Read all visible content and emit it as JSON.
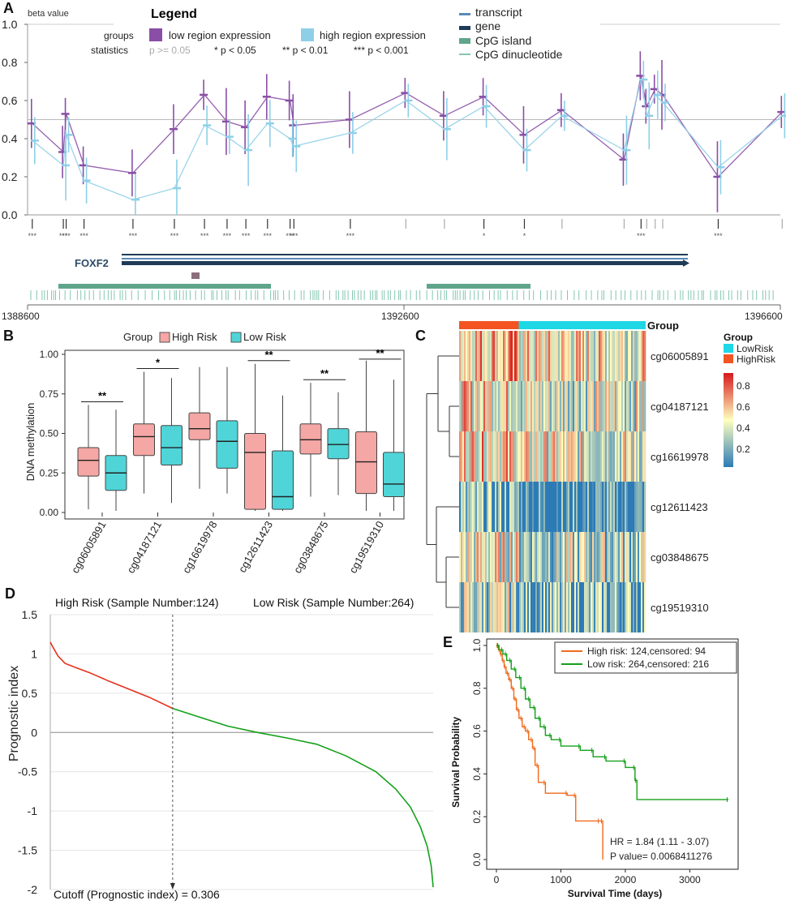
{
  "panels": {
    "A": "A",
    "B": "B",
    "C": "C",
    "D": "D",
    "E": "E"
  },
  "colors": {
    "low_region": "#8a4ea6",
    "high_region": "#8ecfe8",
    "transcript": "#5b8ab5",
    "gene": "#1f3b57",
    "cpg_island": "#5fa58a",
    "cpg_dinucleotide": "#84c6b2",
    "high_risk": "#f4a7a4",
    "low_risk": "#4fd5d8",
    "heat_low": "#2c7bb6",
    "heat_mid": "#ffffbf",
    "heat_high": "#d7191c",
    "group_high": "#f35422",
    "group_low": "#1ed8e6",
    "curve_high": "#e8301c",
    "curve_low": "#14a01a"
  },
  "chart_data": [
    {
      "id": "A",
      "type": "line",
      "title": "Legend",
      "ylabel": "beta value",
      "ylim": [
        0,
        1.0
      ],
      "yticks": [
        "0.0",
        "0.2",
        "0.4",
        "0.6",
        "0.8",
        "1.0"
      ],
      "legend": {
        "groups_label": "groups",
        "statistics_label": "statistics",
        "low": "low region expression",
        "high": "high region expression",
        "stats": [
          "p >= 0.05",
          "* p < 0.05",
          "** p < 0.01",
          "*** p < 0.001"
        ],
        "tracks": [
          "transcript",
          "gene",
          "CpG island",
          "CpG dinucleotide"
        ]
      },
      "reference_line": 0.5,
      "positions": [
        1388650,
        1388980,
        1389010,
        1389200,
        1389720,
        1390160,
        1390480,
        1390720,
        1390920,
        1391150,
        1391390,
        1391430,
        1392030,
        1392620,
        1393030,
        1393450,
        1393880,
        1394280,
        1394940,
        1395120,
        1395180,
        1395270,
        1395350,
        1395940,
        1396620
      ],
      "series": [
        {
          "name": "low region expression",
          "values": [
            0.48,
            0.33,
            0.53,
            0.26,
            0.22,
            0.45,
            0.63,
            0.49,
            0.46,
            0.62,
            0.6,
            0.47,
            0.5,
            0.64,
            0.52,
            0.62,
            0.42,
            0.55,
            0.29,
            0.73,
            0.57,
            0.66,
            0.63,
            0.2,
            0.54
          ]
        },
        {
          "name": "high region expression",
          "values": [
            0.39,
            0.26,
            0.42,
            0.18,
            0.08,
            0.14,
            0.47,
            0.41,
            0.34,
            0.48,
            0.4,
            0.36,
            0.43,
            0.6,
            0.45,
            0.57,
            0.34,
            0.52,
            0.34,
            0.71,
            0.52,
            0.63,
            0.59,
            0.25,
            0.52
          ]
        }
      ],
      "significance": [
        "***",
        "***",
        "***",
        "***",
        "***",
        "***",
        "***",
        "***",
        "***",
        "***",
        "***",
        "***",
        "***",
        "",
        "",
        "*",
        "*",
        "",
        "",
        "***",
        "",
        "",
        "",
        "***",
        ""
      ],
      "gene_label": "FOXF2",
      "xticks": [
        "1388600",
        "1392600",
        "1396600"
      ],
      "xrange": [
        1388600,
        1396600
      ]
    },
    {
      "id": "B",
      "type": "box",
      "legend_title": "Group",
      "legend": [
        "High Risk",
        "Low Risk"
      ],
      "ylabel": "DNA methylation",
      "ylim": [
        0,
        1.0
      ],
      "yticks": [
        "0.00",
        "0.25",
        "0.50",
        "0.75",
        "1.00"
      ],
      "categories": [
        "cg06005891",
        "cg04187121",
        "cg16619978",
        "cg12611423",
        "cg03848675",
        "cg19519310"
      ],
      "significance": [
        "**",
        "*",
        "",
        "**",
        "**",
        "**"
      ],
      "series": [
        {
          "name": "High Risk",
          "boxes": [
            {
              "min": 0.02,
              "q1": 0.23,
              "median": 0.33,
              "q3": 0.41,
              "max": 0.68
            },
            {
              "min": 0.12,
              "q1": 0.36,
              "median": 0.48,
              "q3": 0.56,
              "max": 0.89
            },
            {
              "min": 0.15,
              "q1": 0.46,
              "median": 0.53,
              "q3": 0.63,
              "max": 0.92
            },
            {
              "min": 0.01,
              "q1": 0.02,
              "median": 0.38,
              "q3": 0.5,
              "max": 0.94
            },
            {
              "min": 0.1,
              "q1": 0.37,
              "median": 0.46,
              "q3": 0.56,
              "max": 0.82
            },
            {
              "min": 0.01,
              "q1": 0.12,
              "median": 0.32,
              "q3": 0.51,
              "max": 0.96
            }
          ]
        },
        {
          "name": "Low Risk",
          "boxes": [
            {
              "min": 0.01,
              "q1": 0.14,
              "median": 0.25,
              "q3": 0.36,
              "max": 0.65
            },
            {
              "min": 0.06,
              "q1": 0.3,
              "median": 0.41,
              "q3": 0.55,
              "max": 0.85
            },
            {
              "min": 0.12,
              "q1": 0.28,
              "median": 0.45,
              "q3": 0.58,
              "max": 0.92
            },
            {
              "min": 0.01,
              "q1": 0.02,
              "median": 0.1,
              "q3": 0.39,
              "max": 0.74
            },
            {
              "min": 0.11,
              "q1": 0.34,
              "median": 0.43,
              "q3": 0.53,
              "max": 0.76
            },
            {
              "min": 0.01,
              "q1": 0.1,
              "median": 0.18,
              "q3": 0.38,
              "max": 0.84
            }
          ]
        }
      ]
    },
    {
      "id": "C",
      "type": "heatmap",
      "group_label": "Group",
      "legend_title": "Group",
      "legend": [
        "LowRisk",
        "HighRisk"
      ],
      "rows": [
        "cg06005891",
        "cg04187121",
        "cg16619978",
        "cg12611423",
        "cg03848675",
        "cg19519310"
      ],
      "row_means": [
        0.55,
        0.47,
        0.5,
        0.17,
        0.4,
        0.3
      ],
      "scale": [
        "0.2",
        "0.4",
        "0.6",
        "0.8"
      ],
      "high_risk_n": 124,
      "low_risk_n": 264
    },
    {
      "id": "D",
      "type": "line",
      "high_label": "High Risk (Sample Number:124)",
      "low_label": "Low Risk (Sample Number:264)",
      "ylabel": "Prognostic index",
      "ylim": [
        -2,
        1.5
      ],
      "yticks": [
        "1.5",
        "1",
        "0.5",
        "0",
        "-0.5",
        "-1",
        "-1.5",
        "-2"
      ],
      "cutoff_label": "Cutoff (Prognostic index) = 0.306",
      "cutoff": 0.306,
      "high_n": 124,
      "low_n": 264,
      "curve_points": [
        [
          0,
          1.15
        ],
        [
          3,
          1.08
        ],
        [
          8,
          0.97
        ],
        [
          15,
          0.88
        ],
        [
          25,
          0.83
        ],
        [
          40,
          0.76
        ],
        [
          60,
          0.65
        ],
        [
          80,
          0.55
        ],
        [
          100,
          0.45
        ],
        [
          124,
          0.306
        ],
        [
          150,
          0.2
        ],
        [
          180,
          0.08
        ],
        [
          210,
          0.0
        ],
        [
          240,
          -0.07
        ],
        [
          270,
          -0.15
        ],
        [
          300,
          -0.3
        ],
        [
          330,
          -0.5
        ],
        [
          350,
          -0.72
        ],
        [
          365,
          -0.95
        ],
        [
          375,
          -1.2
        ],
        [
          382,
          -1.45
        ],
        [
          386,
          -1.7
        ],
        [
          388,
          -1.97
        ]
      ]
    },
    {
      "id": "E",
      "type": "line",
      "xlabel": "Survival Time (days)",
      "ylabel": "Survival Probability",
      "xlim": [
        0,
        3700
      ],
      "ylim": [
        0,
        1.0
      ],
      "xticks": [
        "0",
        "1000",
        "2000",
        "3000"
      ],
      "yticks": [
        "0.0",
        "0.2",
        "0.4",
        "0.6",
        "0.8",
        "1.0"
      ],
      "legend": [
        "High risk: 124,censored: 94",
        "Low  risk: 264,censored: 216"
      ],
      "hr_text": "HR = 1.84 (1.11 - 3.07)",
      "p_text": "P value= 0.0068411276",
      "series": [
        {
          "name": "High risk",
          "points": [
            [
              0,
              1.0
            ],
            [
              30,
              0.98
            ],
            [
              60,
              0.96
            ],
            [
              90,
              0.93
            ],
            [
              120,
              0.9
            ],
            [
              150,
              0.87
            ],
            [
              190,
              0.84
            ],
            [
              230,
              0.8
            ],
            [
              270,
              0.75
            ],
            [
              310,
              0.7
            ],
            [
              350,
              0.66
            ],
            [
              400,
              0.62
            ],
            [
              450,
              0.6
            ],
            [
              500,
              0.56
            ],
            [
              560,
              0.52
            ],
            [
              600,
              0.44
            ],
            [
              650,
              0.36
            ],
            [
              760,
              0.31
            ],
            [
              1100,
              0.3
            ],
            [
              1230,
              0.18
            ],
            [
              1600,
              0.18
            ],
            [
              1650,
              0.0
            ]
          ]
        },
        {
          "name": "Low risk",
          "points": [
            [
              0,
              1.0
            ],
            [
              40,
              0.98
            ],
            [
              100,
              0.96
            ],
            [
              160,
              0.93
            ],
            [
              230,
              0.89
            ],
            [
              300,
              0.85
            ],
            [
              380,
              0.8
            ],
            [
              450,
              0.75
            ],
            [
              520,
              0.71
            ],
            [
              600,
              0.66
            ],
            [
              680,
              0.62
            ],
            [
              760,
              0.58
            ],
            [
              850,
              0.56
            ],
            [
              1000,
              0.53
            ],
            [
              1300,
              0.51
            ],
            [
              1500,
              0.48
            ],
            [
              1700,
              0.46
            ],
            [
              2000,
              0.43
            ],
            [
              2150,
              0.37
            ],
            [
              2180,
              0.28
            ],
            [
              3600,
              0.28
            ]
          ]
        }
      ]
    }
  ]
}
